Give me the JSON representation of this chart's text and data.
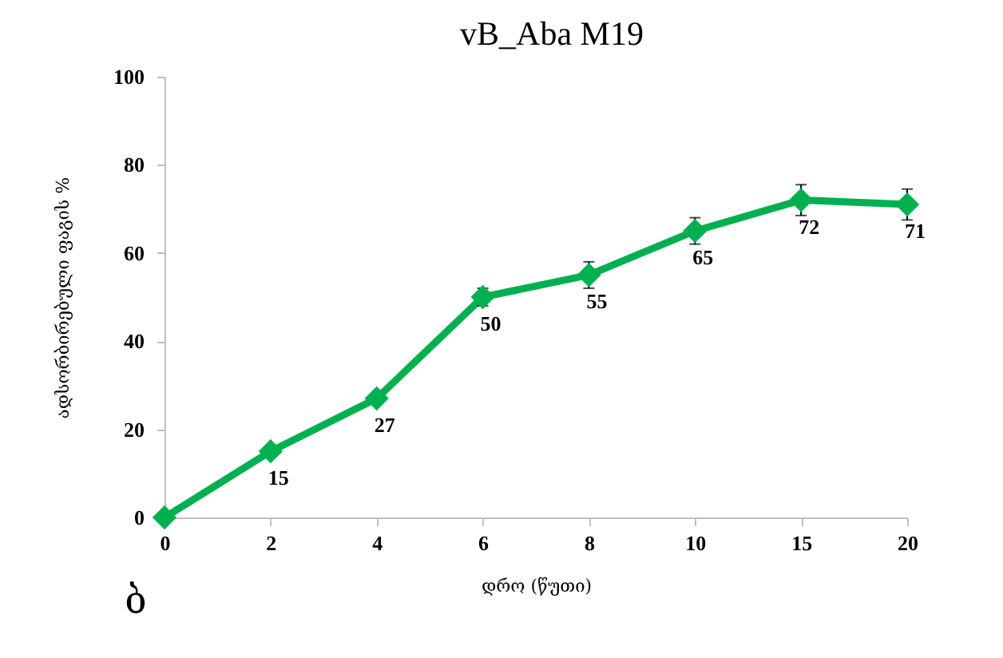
{
  "chart_data": {
    "type": "line",
    "title": "vB_Aba M19",
    "xlabel": "დრო (წუთი)",
    "ylabel": "ადსორბირებული ფაგის %",
    "annotations": [
      "ბ"
    ],
    "categories": [
      "0",
      "2",
      "4",
      "6",
      "8",
      "10",
      "15",
      "20"
    ],
    "series": [
      {
        "color": "#00b050",
        "values": [
          0,
          15,
          27,
          50,
          55,
          65,
          72,
          71
        ],
        "errors": [
          null,
          null,
          null,
          2,
          3,
          3,
          3.5,
          3.5
        ],
        "value_labels": [
          null,
          "15",
          "27",
          "50",
          "55",
          "65",
          "72",
          "71"
        ]
      }
    ],
    "ylim": [
      0,
      100
    ],
    "yticks": [
      0,
      20,
      40,
      60,
      80,
      100
    ],
    "grid": false,
    "marker": "diamond",
    "line_style": "solid"
  }
}
